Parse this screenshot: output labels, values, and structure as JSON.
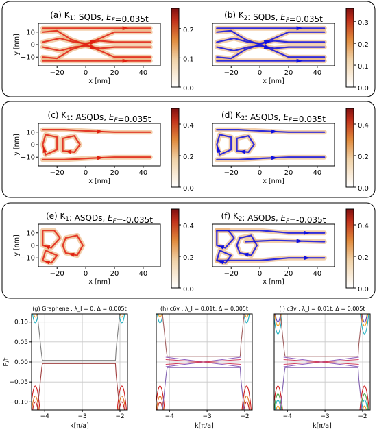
{
  "chart_data": [
    {
      "type": "heatmap",
      "panel": "a",
      "title_prefix": "(a) K",
      "title_sub": "1",
      "title_mid": ": SQDs, ",
      "title_e": "E",
      "title_f": "F",
      "title_val": "=0.035t",
      "xlabel": "x [nm]",
      "ylabel": "y [nm]",
      "xticks": [
        "−20",
        "0",
        "20",
        "40"
      ],
      "yticks": [
        "10",
        "0",
        "−10"
      ],
      "colorbar_ticks": [
        "0.0",
        "0.1",
        "0.2"
      ],
      "colorbar_range": [
        0,
        0.27
      ],
      "arrow_color": "#e02010",
      "x_range": [
        -33,
        52
      ],
      "y_range": [
        -17,
        17
      ]
    },
    {
      "type": "heatmap",
      "panel": "b",
      "title_prefix": "(b) K",
      "title_sub": "2",
      "title_mid": ": SQDs, ",
      "title_e": "E",
      "title_f": "F",
      "title_val": "=0.035t",
      "xlabel": "x [nm]",
      "xticks": [
        "−20",
        "0",
        "20",
        "40"
      ],
      "colorbar_ticks": [
        "0.0",
        "0.1",
        "0.2",
        "0.3"
      ],
      "colorbar_range": [
        0,
        0.36
      ],
      "arrow_color": "#1010e0",
      "x_range": [
        -33,
        52
      ],
      "y_range": [
        -17,
        17
      ]
    },
    {
      "type": "heatmap",
      "panel": "c",
      "title_prefix": "(c) K",
      "title_sub": "1",
      "title_mid": ": ASQDs, ",
      "title_e": "E",
      "title_f": "F",
      "title_val": "=0.035t",
      "xlabel": "x [nm]",
      "ylabel": "y [nm]",
      "xticks": [
        "−20",
        "0",
        "20",
        "40"
      ],
      "yticks": [
        "10",
        "0",
        "−10"
      ],
      "colorbar_ticks": [
        "0.0",
        "0.2",
        "0.4"
      ],
      "colorbar_range": [
        0,
        0.5
      ],
      "arrow_color": "#e02010",
      "x_range": [
        -33,
        52
      ],
      "y_range": [
        -17,
        17
      ]
    },
    {
      "type": "heatmap",
      "panel": "d",
      "title_prefix": "(d) K",
      "title_sub": "2",
      "title_mid": ": ASQDs, ",
      "title_e": "E",
      "title_f": "F",
      "title_val": "=0.035t",
      "xlabel": "x [nm]",
      "xticks": [
        "−20",
        "0",
        "20",
        "40"
      ],
      "colorbar_ticks": [
        "0.0",
        "0.2",
        "0.4"
      ],
      "colorbar_range": [
        0,
        0.5
      ],
      "arrow_color": "#1010e0",
      "x_range": [
        -33,
        52
      ],
      "y_range": [
        -17,
        17
      ]
    },
    {
      "type": "heatmap",
      "panel": "e",
      "title_prefix": "(e) K",
      "title_sub": "1",
      "title_mid": ": ASQDs, ",
      "title_e": "E",
      "title_f": "F",
      "title_val": "=-0.035t",
      "xlabel": "x [nm]",
      "ylabel": "y [nm]",
      "xticks": [
        "−20",
        "0",
        "20",
        "40"
      ],
      "yticks": [
        "10",
        "0",
        "−10"
      ],
      "colorbar_ticks": [
        "0.0",
        "0.2",
        "0.4"
      ],
      "colorbar_range": [
        0,
        0.5
      ],
      "arrow_color": "#e02010",
      "x_range": [
        -33,
        52
      ],
      "y_range": [
        -17,
        17
      ]
    },
    {
      "type": "heatmap",
      "panel": "f",
      "title_prefix": "(f) K",
      "title_sub": "2",
      "title_mid": ": ASQDs, ",
      "title_e": "E",
      "title_f": "F",
      "title_val": "=-0.035t",
      "xlabel": "x [nm]",
      "xticks": [
        "−20",
        "0",
        "20",
        "40"
      ],
      "colorbar_ticks": [
        "0.0",
        "0.2",
        "0.4"
      ],
      "colorbar_range": [
        0,
        0.5
      ],
      "arrow_color": "#1010e0",
      "x_range": [
        -33,
        52
      ],
      "y_range": [
        -17,
        17
      ]
    },
    {
      "type": "line",
      "panel": "g",
      "title": "(g) Graphene : λ_I = 0, Δ = 0.005t",
      "xlabel": "k[π/a]",
      "ylabel": "E/t",
      "xlim": [
        -4.35,
        -1.8
      ],
      "ylim": [
        -0.12,
        0.12
      ],
      "xticks": [
        "−4",
        "−3",
        "−2"
      ],
      "yticks": [
        "0.10",
        "0.05",
        "0.00",
        "−0.05",
        "−0.10"
      ],
      "series": [
        {
          "kind": "bulk",
          "color": "#1fb0c0",
          "e0": 0.098
        },
        {
          "kind": "bulk",
          "color": "#f0a020",
          "e0": 0.112
        },
        {
          "kind": "bulk",
          "color": "#d02020",
          "e0": -0.06
        },
        {
          "kind": "bulk",
          "color": "#e07020",
          "e0": -0.085
        },
        {
          "kind": "bulk",
          "color": "#c02020",
          "e0": -0.1
        },
        {
          "kind": "flat",
          "color": "#808080",
          "e0": 0.004
        },
        {
          "kind": "flat",
          "color": "#a04040",
          "e0": -0.004
        }
      ]
    },
    {
      "type": "line",
      "panel": "h",
      "title": "(h) c6v : λ_I = 0.01t, Δ = 0.005t",
      "xlabel": "k[π/a]",
      "xlim": [
        -4.35,
        -1.8
      ],
      "ylim": [
        -0.12,
        0.12
      ],
      "xticks": [
        "−4",
        "−3",
        "−2"
      ],
      "series": [
        {
          "kind": "bulk",
          "color": "#1fb0c0",
          "e0": 0.098
        },
        {
          "kind": "bulk",
          "color": "#f0a020",
          "e0": 0.112
        },
        {
          "kind": "bulk",
          "color": "#d02020",
          "e0": -0.06
        },
        {
          "kind": "bulk",
          "color": "#e07020",
          "e0": -0.085
        },
        {
          "kind": "bulk",
          "color": "#c02020",
          "e0": -0.1
        },
        {
          "kind": "cross",
          "color": "#9060c0",
          "e0": 0.012
        },
        {
          "kind": "cross",
          "color": "#d04060",
          "e0": 0.006
        },
        {
          "kind": "flat",
          "color": "#a06060",
          "e0": 0.014
        },
        {
          "kind": "flat",
          "color": "#8060b0",
          "e0": -0.014
        }
      ]
    },
    {
      "type": "line",
      "panel": "i",
      "title": "(i) c3v : λ_I = 0.01t, Δ = 0.005t",
      "xlabel": "k[π/a]",
      "xlim": [
        -4.35,
        -1.8
      ],
      "ylim": [
        -0.12,
        0.12
      ],
      "xticks": [
        "−4",
        "−3",
        "−2"
      ],
      "series": [
        {
          "kind": "bulk",
          "color": "#1fb0c0",
          "e0": 0.07
        },
        {
          "kind": "bulk",
          "color": "#f0a020",
          "e0": 0.09
        },
        {
          "kind": "bulk",
          "color": "#6040c0",
          "e0": 0.1
        },
        {
          "kind": "bulk",
          "color": "#d02020",
          "e0": -0.06
        },
        {
          "kind": "bulk",
          "color": "#40a040",
          "e0": -0.08
        },
        {
          "kind": "bulk",
          "color": "#1fb0c0",
          "e0": -0.095
        },
        {
          "kind": "bulk",
          "color": "#f0a020",
          "e0": -0.11
        },
        {
          "kind": "cross",
          "color": "#9060c0",
          "e0": 0.012
        },
        {
          "kind": "cross",
          "color": "#d04060",
          "e0": 0.006
        },
        {
          "kind": "flat",
          "color": "#a06060",
          "e0": 0.014
        },
        {
          "kind": "flat",
          "color": "#8060b0",
          "e0": -0.014
        }
      ]
    }
  ]
}
